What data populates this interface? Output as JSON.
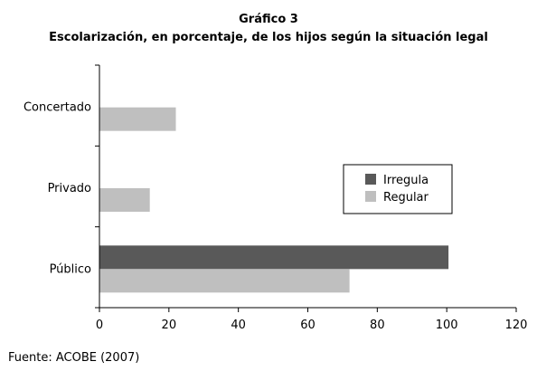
{
  "chart_data": {
    "type": "bar",
    "orientation": "horizontal",
    "title": "Gráfico 3",
    "subtitle": "Escolarización, en porcentaje, de los hijos según la situación legal",
    "categories": [
      "Concertado",
      "Privado",
      "Público"
    ],
    "series": [
      {
        "name": "Irregula",
        "color": "#595959",
        "values": [
          0,
          0,
          100.5
        ]
      },
      {
        "name": "Regular",
        "color": "#bfbfbf",
        "values": [
          22,
          14.5,
          72
        ]
      }
    ],
    "x_ticks": [
      "0",
      "20",
      "40",
      "60",
      "80",
      "100",
      "120"
    ],
    "xlim": [
      0,
      120
    ],
    "grid": false,
    "legend_position": "right"
  },
  "source": "Fuente: ACOBE (2007)"
}
